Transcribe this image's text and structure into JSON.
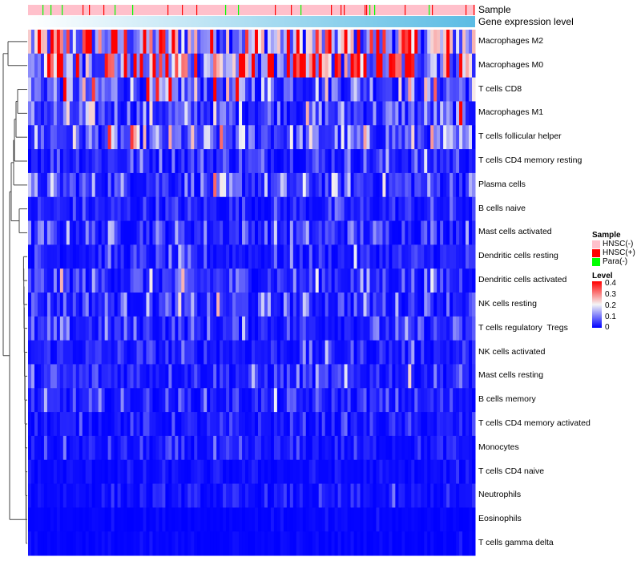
{
  "annotations": {
    "sample_label": "Sample",
    "gene_label": "Gene expression level"
  },
  "legend": {
    "sample_title": "Sample",
    "sample_items": [
      {
        "label": "HNSC(-)",
        "color": "#FFC0CB"
      },
      {
        "label": "HNSC(+)",
        "color": "#FF0000"
      },
      {
        "label": "Para(-)",
        "color": "#00FF00"
      }
    ],
    "level_title": "Level",
    "level_ticks": [
      "0.4",
      "0.3",
      "0.2",
      "0.1",
      "0"
    ],
    "level_colors": {
      "low": "#0000FF",
      "mid": "#F5F5F5",
      "high": "#FF0000"
    }
  },
  "chart_data": {
    "type": "heatmap",
    "title": "",
    "value_range": [
      0,
      0.4
    ],
    "rows": [
      "Macrophages M2",
      "Macrophages M0",
      "T cells CD8",
      "Macrophages M1",
      "T cells follicular helper",
      "T cells CD4 memory resting",
      "Plasma cells",
      "B cells naive",
      "Mast cells activated",
      "Dendritic cells resting",
      "Dendritic cells activated",
      "NK cells resting",
      "T cells regulatory  Tregs",
      "NK cells activated",
      "Mast cells resting",
      "B cells memory",
      "T cells CD4 memory activated",
      "Monocytes",
      "T cells CD4 naive",
      "Neutrophils",
      "Eosinophils",
      "T cells gamma delta"
    ],
    "row_mean_levels": [
      0.22,
      0.26,
      0.1,
      0.07,
      0.08,
      0.05,
      0.06,
      0.03,
      0.05,
      0.03,
      0.05,
      0.05,
      0.04,
      0.03,
      0.04,
      0.03,
      0.02,
      0.02,
      0.01,
      0.015,
      0.005,
      0.005
    ],
    "sample_fractions": {
      "HNSC(-)": 0.9,
      "HNSC(+)": 0.05,
      "Para(-)": 0.05
    }
  }
}
